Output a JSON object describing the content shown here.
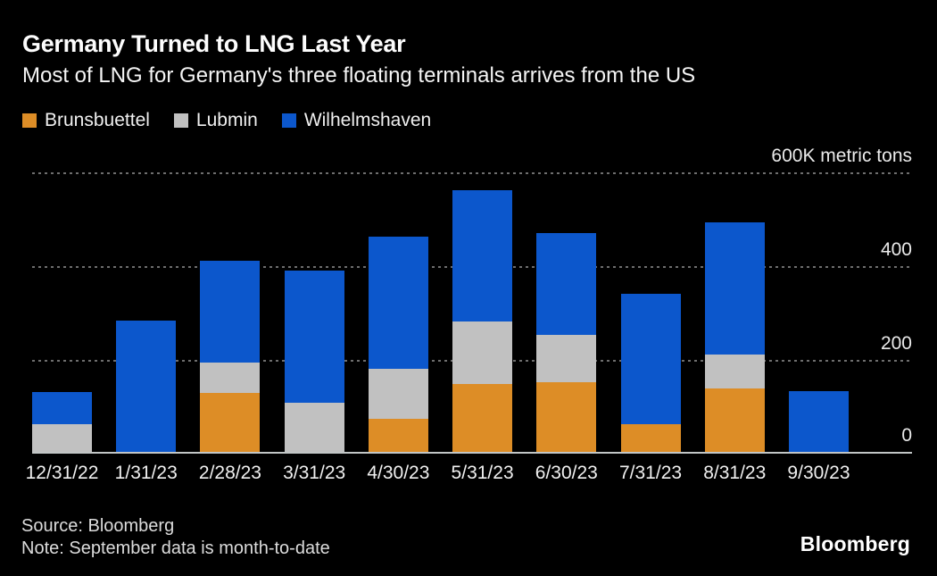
{
  "header": {
    "title": "Germany Turned to LNG Last Year",
    "subtitle": "Most of LNG for Germany's three floating terminals arrives from the US"
  },
  "legend": {
    "items": [
      {
        "label": "Brunsbuettel",
        "color": "#DD8D26"
      },
      {
        "label": "Lubmin",
        "color": "#C1C1C1"
      },
      {
        "label": "Wilhelmshaven",
        "color": "#0C57CC"
      }
    ]
  },
  "axis": {
    "y_tick_labels": [
      "600K metric tons",
      "400",
      "200",
      "0"
    ],
    "y_tick_values": [
      600,
      400,
      200,
      0
    ]
  },
  "chart_data": {
    "type": "bar",
    "stacked": true,
    "title": "Germany Turned to LNG Last Year",
    "subtitle": "Most of LNG for Germany's three floating terminals arrives from the US",
    "xlabel": "",
    "ylabel": "K metric tons",
    "ylim": [
      0,
      600
    ],
    "gridlines": [
      600,
      400,
      200
    ],
    "grid": "dotted-horizontal",
    "legend_position": "top-left",
    "categories": [
      "12/31/22",
      "1/31/23",
      "2/28/23",
      "3/31/23",
      "4/30/23",
      "5/31/23",
      "6/30/23",
      "7/31/23",
      "8/31/23",
      "9/30/23"
    ],
    "series": [
      {
        "name": "Brunsbuettel",
        "color": "#DD8D26",
        "values": [
          0,
          0,
          126,
          0,
          71,
          145,
          149,
          59,
          137,
          0
        ]
      },
      {
        "name": "Lubmin",
        "color": "#C1C1C1",
        "values": [
          59,
          0,
          65,
          105,
          107,
          134,
          101,
          0,
          73,
          0
        ]
      },
      {
        "name": "Wilhelmshaven",
        "color": "#0C57CC",
        "values": [
          69,
          282,
          219,
          284,
          284,
          282,
          218,
          280,
          284,
          130
        ]
      }
    ],
    "totals": [
      128,
      282,
      410,
      389,
      462,
      561,
      468,
      339,
      494,
      130
    ]
  },
  "footer": {
    "source": "Source: Bloomberg",
    "note": "Note: September data is month-to-date",
    "logo": "Bloomberg"
  }
}
